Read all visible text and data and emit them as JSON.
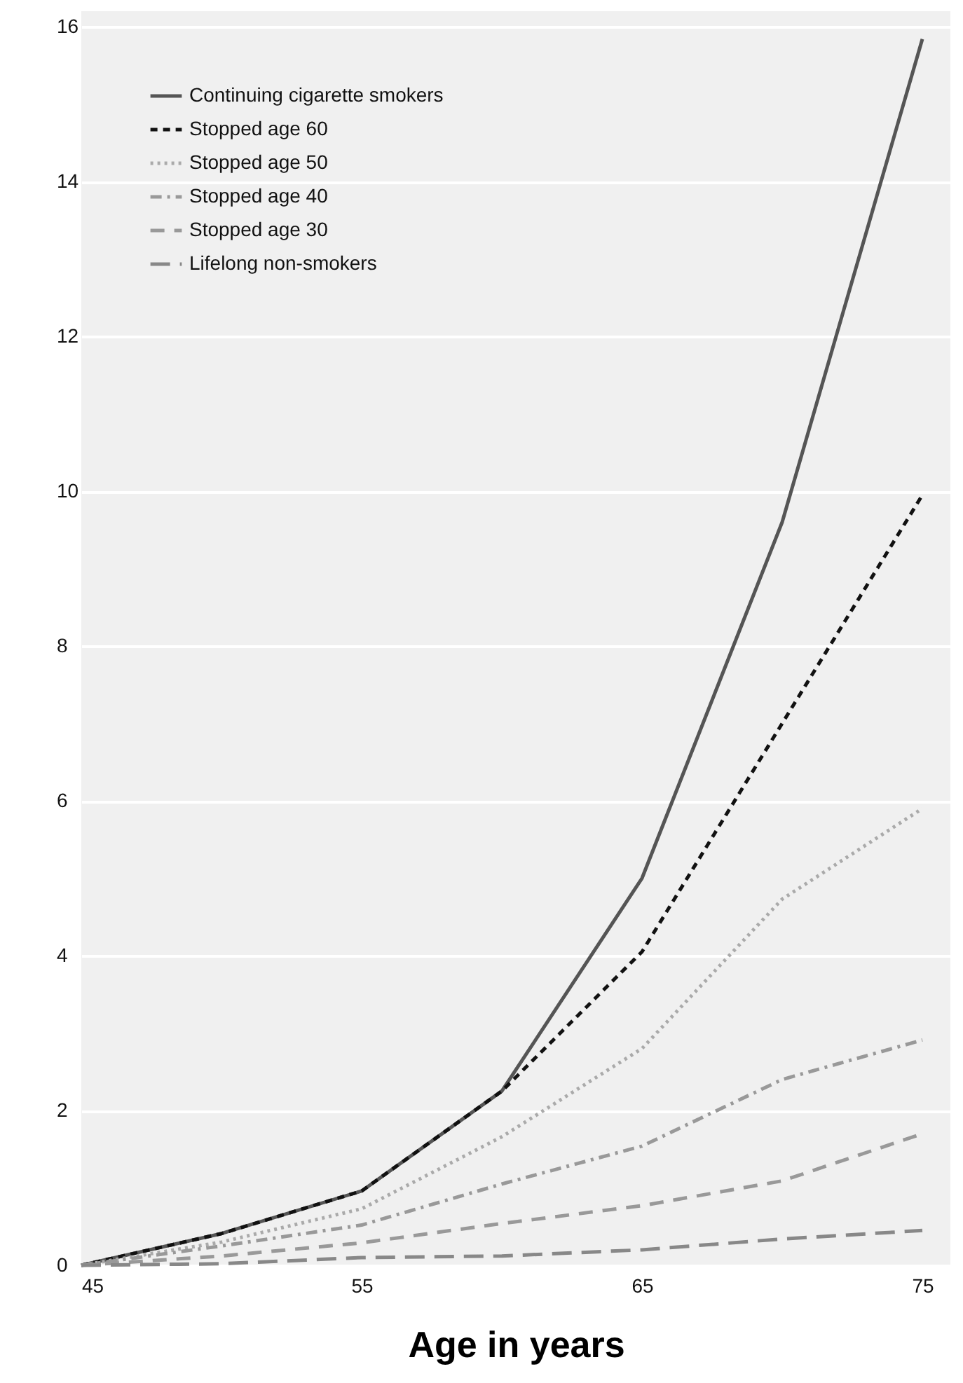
{
  "chart_data": {
    "type": "line",
    "xlabel": "Age in years",
    "x": [
      45,
      50,
      55,
      60,
      65,
      70,
      75
    ],
    "xlim": [
      45,
      76
    ],
    "xticks": [
      45,
      55,
      65,
      75
    ],
    "ylim": [
      0,
      16.2
    ],
    "yticks": [
      0,
      2,
      4,
      6,
      8,
      10,
      12,
      14,
      16
    ],
    "grid": "y",
    "legend": "top left",
    "marker": "none",
    "series": [
      {
        "name": "Continuing cigarette smokers",
        "color": "#555555",
        "line_style": "solid",
        "values": [
          0,
          0.41,
          0.96,
          2.25,
          5.0,
          9.6,
          15.84
        ]
      },
      {
        "name": "Stopped age 60",
        "color": "#111111",
        "line_style": "dashed",
        "values": [
          0,
          0.41,
          0.96,
          2.25,
          4.05,
          7.0,
          9.95
        ]
      },
      {
        "name": "Stopped age 50",
        "color": "#aaaaaa",
        "line_style": "dotted",
        "values": [
          0,
          0.3,
          0.73,
          1.66,
          2.8,
          4.73,
          5.9
        ]
      },
      {
        "name": "Stopped age 40",
        "color": "#999999",
        "line_style": "dashed",
        "values": [
          0,
          0.25,
          0.52,
          1.05,
          1.54,
          2.4,
          2.91
        ]
      },
      {
        "name": "Stopped age 30",
        "color": "#999999",
        "line_style": "dashed",
        "values": [
          0,
          0.12,
          0.29,
          0.54,
          0.77,
          1.09,
          1.7
        ]
      },
      {
        "name": "Lifelong non-smokers",
        "color": "#888888",
        "line_style": "dashed",
        "values": [
          0,
          0.02,
          0.1,
          0.12,
          0.2,
          0.34,
          0.45
        ]
      }
    ]
  }
}
